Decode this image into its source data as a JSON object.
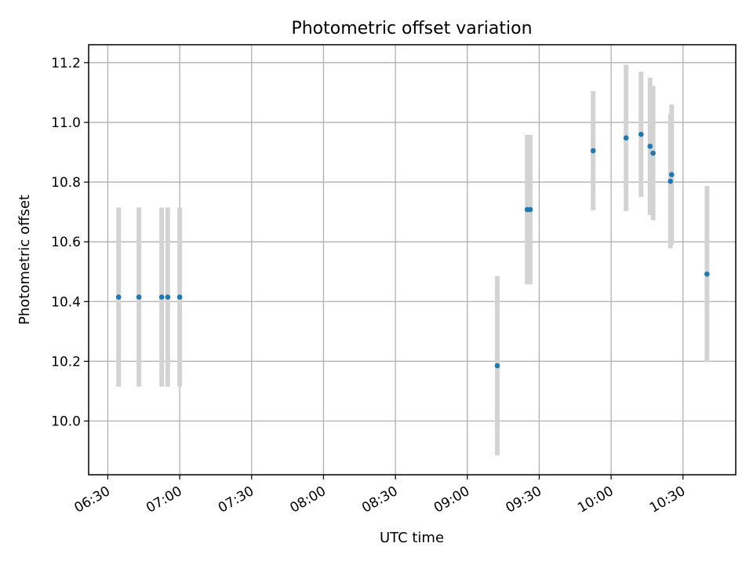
{
  "chart_data": {
    "type": "scatter",
    "title": "Photometric offset variation",
    "xlabel": "UTC time",
    "ylabel": "Photometric offset",
    "x_ticks": [
      "06:30",
      "07:00",
      "07:30",
      "08:00",
      "08:30",
      "09:00",
      "09:30",
      "10:00",
      "10:30"
    ],
    "y_ticks": [
      10.0,
      10.2,
      10.4,
      10.6,
      10.8,
      11.0,
      11.2
    ],
    "xlim": [
      "06:22",
      "10:52"
    ],
    "ylim": [
      9.82,
      11.26
    ],
    "grid": true,
    "colors": {
      "points": "#1f77b4",
      "errorbars": "#d3d3d3"
    },
    "series": [
      {
        "points": [
          {
            "time": "06:34:30",
            "y": 10.415,
            "err": 0.3
          },
          {
            "time": "06:43:00",
            "y": 10.415,
            "err": 0.3
          },
          {
            "time": "06:52:30",
            "y": 10.415,
            "err": 0.3
          },
          {
            "time": "06:55:00",
            "y": 10.415,
            "err": 0.3
          },
          {
            "time": "07:00:00",
            "y": 10.415,
            "err": 0.3
          },
          {
            "time": "09:12:30",
            "y": 10.185,
            "err": 0.3
          },
          {
            "time": "09:25:00",
            "y": 10.708,
            "err": 0.25
          },
          {
            "time": "09:26:15",
            "y": 10.708,
            "err": 0.25
          },
          {
            "time": "09:52:30",
            "y": 10.905,
            "err": 0.2
          },
          {
            "time": "10:06:15",
            "y": 10.948,
            "err": 0.245
          },
          {
            "time": "10:12:30",
            "y": 10.96,
            "err": 0.21
          },
          {
            "time": "10:16:15",
            "y": 10.92,
            "err": 0.23
          },
          {
            "time": "10:17:30",
            "y": 10.897,
            "err": 0.225
          },
          {
            "time": "10:24:45",
            "y": 10.803,
            "err": 0.225
          },
          {
            "time": "10:25:15",
            "y": 10.825,
            "err": 0.235
          },
          {
            "time": "10:40:00",
            "y": 10.492,
            "err": 0.295
          }
        ]
      }
    ]
  }
}
